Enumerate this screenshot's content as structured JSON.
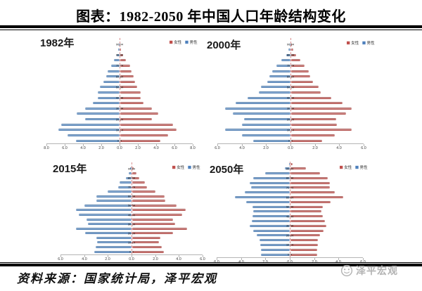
{
  "page": {
    "title": "图表：1982-2050 年中国人口年龄结构变化"
  },
  "footer": {
    "source": "资料来源：国家统计局，泽平宏观",
    "logo_text": "泽平宏观",
    "logo_color": "#b3b3b3"
  },
  "colors": {
    "male": "#4F81BD",
    "female": "#C0504D"
  },
  "chart_data": [
    {
      "type": "bar",
      "subtype": "population-pyramid",
      "title": "1982年",
      "legend": [
        {
          "label": "女性",
          "color": "#C0504D"
        },
        {
          "label": "男性",
          "color": "#4F81BD"
        }
      ],
      "x_axis": {
        "ticks": [
          "8.0",
          "6.0",
          "4.0",
          "2.0",
          "0.0",
          "2.0",
          "4.0",
          "6.0",
          "8.0"
        ],
        "max": 8,
        "unit": "percent of population"
      },
      "age_groups": [
        "0-4",
        "5-9",
        "10-14",
        "15-19",
        "20-24",
        "25-29",
        "30-34",
        "35-39",
        "40-44",
        "45-49",
        "50-54",
        "55-59",
        "60-64",
        "65-69",
        "70-74",
        "75-79",
        "80-84",
        "85-89",
        "90-94"
      ],
      "series": [
        {
          "name": "男性",
          "side": "left",
          "color": "#4F81BD",
          "values": [
            4.8,
            5.7,
            6.7,
            6.4,
            3.8,
            4.7,
            3.8,
            2.9,
            2.4,
            2.4,
            2.2,
            1.8,
            1.5,
            1.3,
            0.95,
            0.6,
            0.3,
            0.12,
            0.04
          ]
        },
        {
          "name": "女性",
          "side": "right",
          "color": "#C0504D",
          "values": [
            4.45,
            5.3,
            6.2,
            5.85,
            3.55,
            4.2,
            3.55,
            2.55,
            2.3,
            2.25,
            1.9,
            1.65,
            1.5,
            1.3,
            1.1,
            0.65,
            0.35,
            0.15,
            0.05
          ]
        }
      ]
    },
    {
      "type": "bar",
      "subtype": "population-pyramid",
      "title": "2000年",
      "legend": [
        {
          "label": "女性",
          "color": "#C0504D"
        },
        {
          "label": "男性",
          "color": "#4F81BD"
        }
      ],
      "x_axis": {
        "ticks": [
          "6.0",
          "4.0",
          "2.0",
          "0.0",
          "2.0",
          "4.0",
          "6.0"
        ],
        "max": 6,
        "unit": "percent of population"
      },
      "age_groups": [
        "0-4",
        "5-9",
        "10-14",
        "15-19",
        "20-24",
        "25-29",
        "30-34",
        "35-39",
        "40-44",
        "45-49",
        "50-54",
        "55-59",
        "60-64",
        "65-69",
        "70-74",
        "75-79",
        "80-84",
        "85-89",
        "90-94"
      ],
      "series": [
        {
          "name": "男性",
          "side": "left",
          "color": "#4F81BD",
          "values": [
            3.05,
            4.0,
            5.4,
            4.0,
            3.8,
            4.75,
            5.35,
            4.5,
            3.5,
            2.6,
            2.45,
            1.9,
            1.75,
            1.5,
            1.15,
            0.75,
            0.35,
            0.15,
            0.05
          ]
        },
        {
          "name": "女性",
          "side": "right",
          "color": "#C0504D",
          "values": [
            2.6,
            3.6,
            5.0,
            3.8,
            3.7,
            4.55,
            5.0,
            4.25,
            3.3,
            2.45,
            2.3,
            1.8,
            1.6,
            1.45,
            1.1,
            0.8,
            0.45,
            0.18,
            0.06
          ]
        }
      ]
    },
    {
      "type": "bar",
      "subtype": "population-pyramid",
      "title": "2015年",
      "legend": [
        {
          "label": "女性",
          "color": "#C0504D"
        },
        {
          "label": "男性",
          "color": "#4F81BD"
        }
      ],
      "x_axis": {
        "ticks": [
          "6.0",
          "4.0",
          "2.0",
          "0.0",
          "2.0",
          "4.0",
          "6.0"
        ],
        "max": 6,
        "unit": "percent of population"
      },
      "age_groups": [
        "0-4",
        "5-9",
        "10-14",
        "15-19",
        "20-24",
        "25-29",
        "30-34",
        "35-39",
        "40-44",
        "45-49",
        "50-54",
        "55-59",
        "60-64",
        "65-69",
        "70-74",
        "75-79",
        "80-84",
        "85-89",
        "90-94"
      ],
      "series": [
        {
          "name": "男性",
          "side": "left",
          "color": "#4F81BD",
          "values": [
            3.15,
            3.0,
            2.9,
            2.95,
            3.9,
            4.7,
            3.65,
            3.8,
            4.45,
            4.65,
            3.95,
            2.95,
            2.95,
            2.0,
            1.15,
            1.0,
            0.5,
            0.26,
            0.1
          ]
        },
        {
          "name": "女性",
          "side": "right",
          "color": "#C0504D",
          "values": [
            2.7,
            2.5,
            2.3,
            2.4,
            3.45,
            4.65,
            3.65,
            3.45,
            4.25,
            4.5,
            3.75,
            2.8,
            2.75,
            2.0,
            1.3,
            1.1,
            0.63,
            0.36,
            0.14
          ]
        }
      ]
    },
    {
      "type": "bar",
      "subtype": "population-pyramid",
      "title": "2050年",
      "legend": [
        {
          "label": "女性",
          "color": "#C0504D"
        },
        {
          "label": "男性",
          "color": "#4F81BD"
        }
      ],
      "x_axis": {
        "ticks": [
          "6.0",
          "4.0",
          "2.0",
          "0.0",
          "2.0",
          "4.0",
          "6.0"
        ],
        "max": 6,
        "unit": "percent of population"
      },
      "age_groups": [
        "0-4",
        "5-9",
        "10-14",
        "15-19",
        "20-24",
        "25-29",
        "30-34",
        "35-39",
        "40-44",
        "45-49",
        "50-54",
        "55-59",
        "60-64",
        "65-69",
        "70-74",
        "75-79",
        "80-84",
        "85-89",
        "90-94",
        "95+"
      ],
      "series": [
        {
          "name": "男性",
          "side": "left",
          "color": "#4F81BD",
          "values": [
            2.35,
            2.4,
            2.45,
            2.5,
            2.75,
            3.0,
            3.3,
            3.15,
            3.1,
            3.0,
            3.05,
            3.6,
            4.55,
            3.7,
            3.2,
            3.3,
            3.0,
            2.05,
            0.4,
            0.05
          ]
        },
        {
          "name": "女性",
          "side": "right",
          "color": "#C0504D",
          "values": [
            2.25,
            2.25,
            2.3,
            2.3,
            2.45,
            2.75,
            3.0,
            2.85,
            2.7,
            2.6,
            2.7,
            3.35,
            4.35,
            3.7,
            3.3,
            3.25,
            3.1,
            2.45,
            1.3,
            0.2
          ]
        }
      ]
    }
  ]
}
